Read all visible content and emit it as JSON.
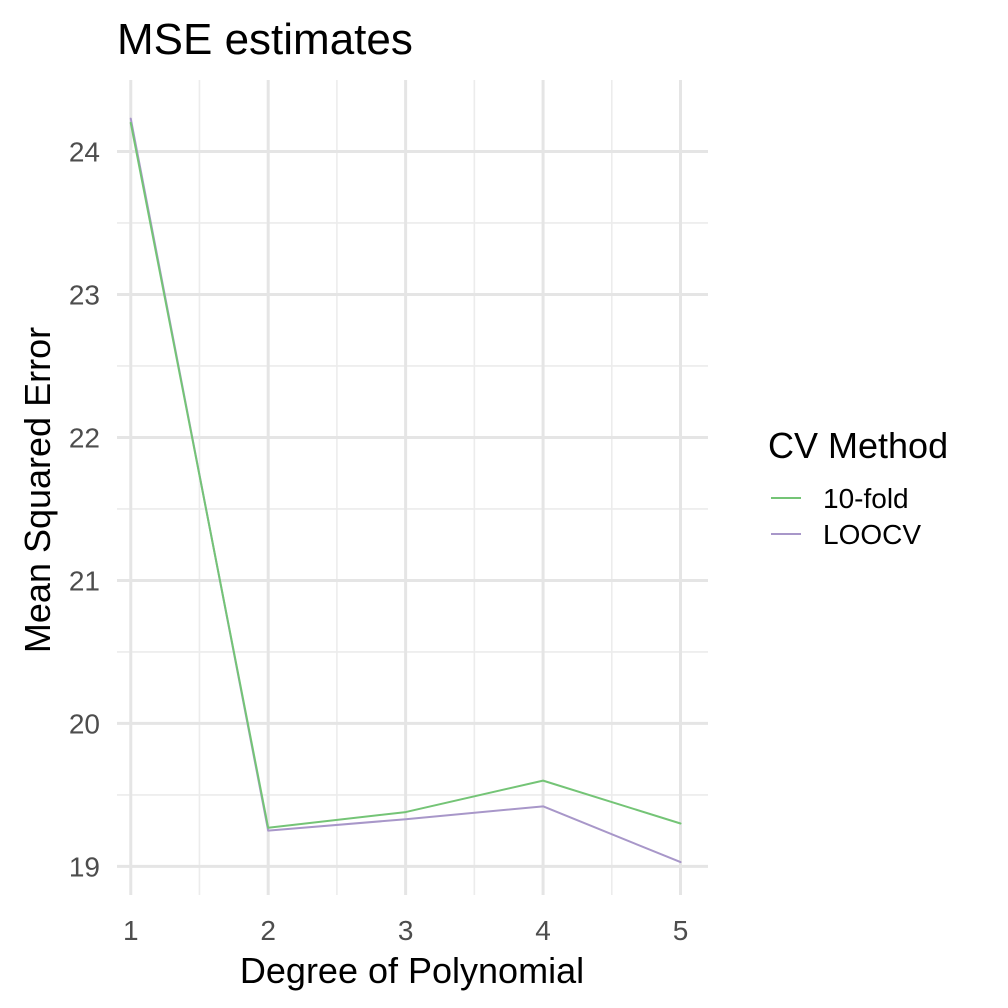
{
  "chart_data": {
    "type": "line",
    "title": "MSE estimates",
    "xlabel": "Degree of Polynomial",
    "ylabel": "Mean Squared Error",
    "x": [
      1,
      2,
      3,
      4,
      5
    ],
    "xticks": [
      "1",
      "2",
      "3",
      "4",
      "5"
    ],
    "yticks": [
      "19",
      "20",
      "21",
      "22",
      "23",
      "24"
    ],
    "xlim": [
      0.9,
      5.2
    ],
    "ylim": [
      18.8,
      24.5
    ],
    "grid": true,
    "legend": {
      "title": "CV Method",
      "placement": "right"
    },
    "series": [
      {
        "name": "10-fold",
        "color": "#74c476",
        "values": [
          24.2,
          19.27,
          19.38,
          19.6,
          19.3
        ]
      },
      {
        "name": "LOOCV",
        "color": "#a897c9",
        "values": [
          24.23,
          19.25,
          19.33,
          19.42,
          19.03
        ]
      }
    ]
  }
}
